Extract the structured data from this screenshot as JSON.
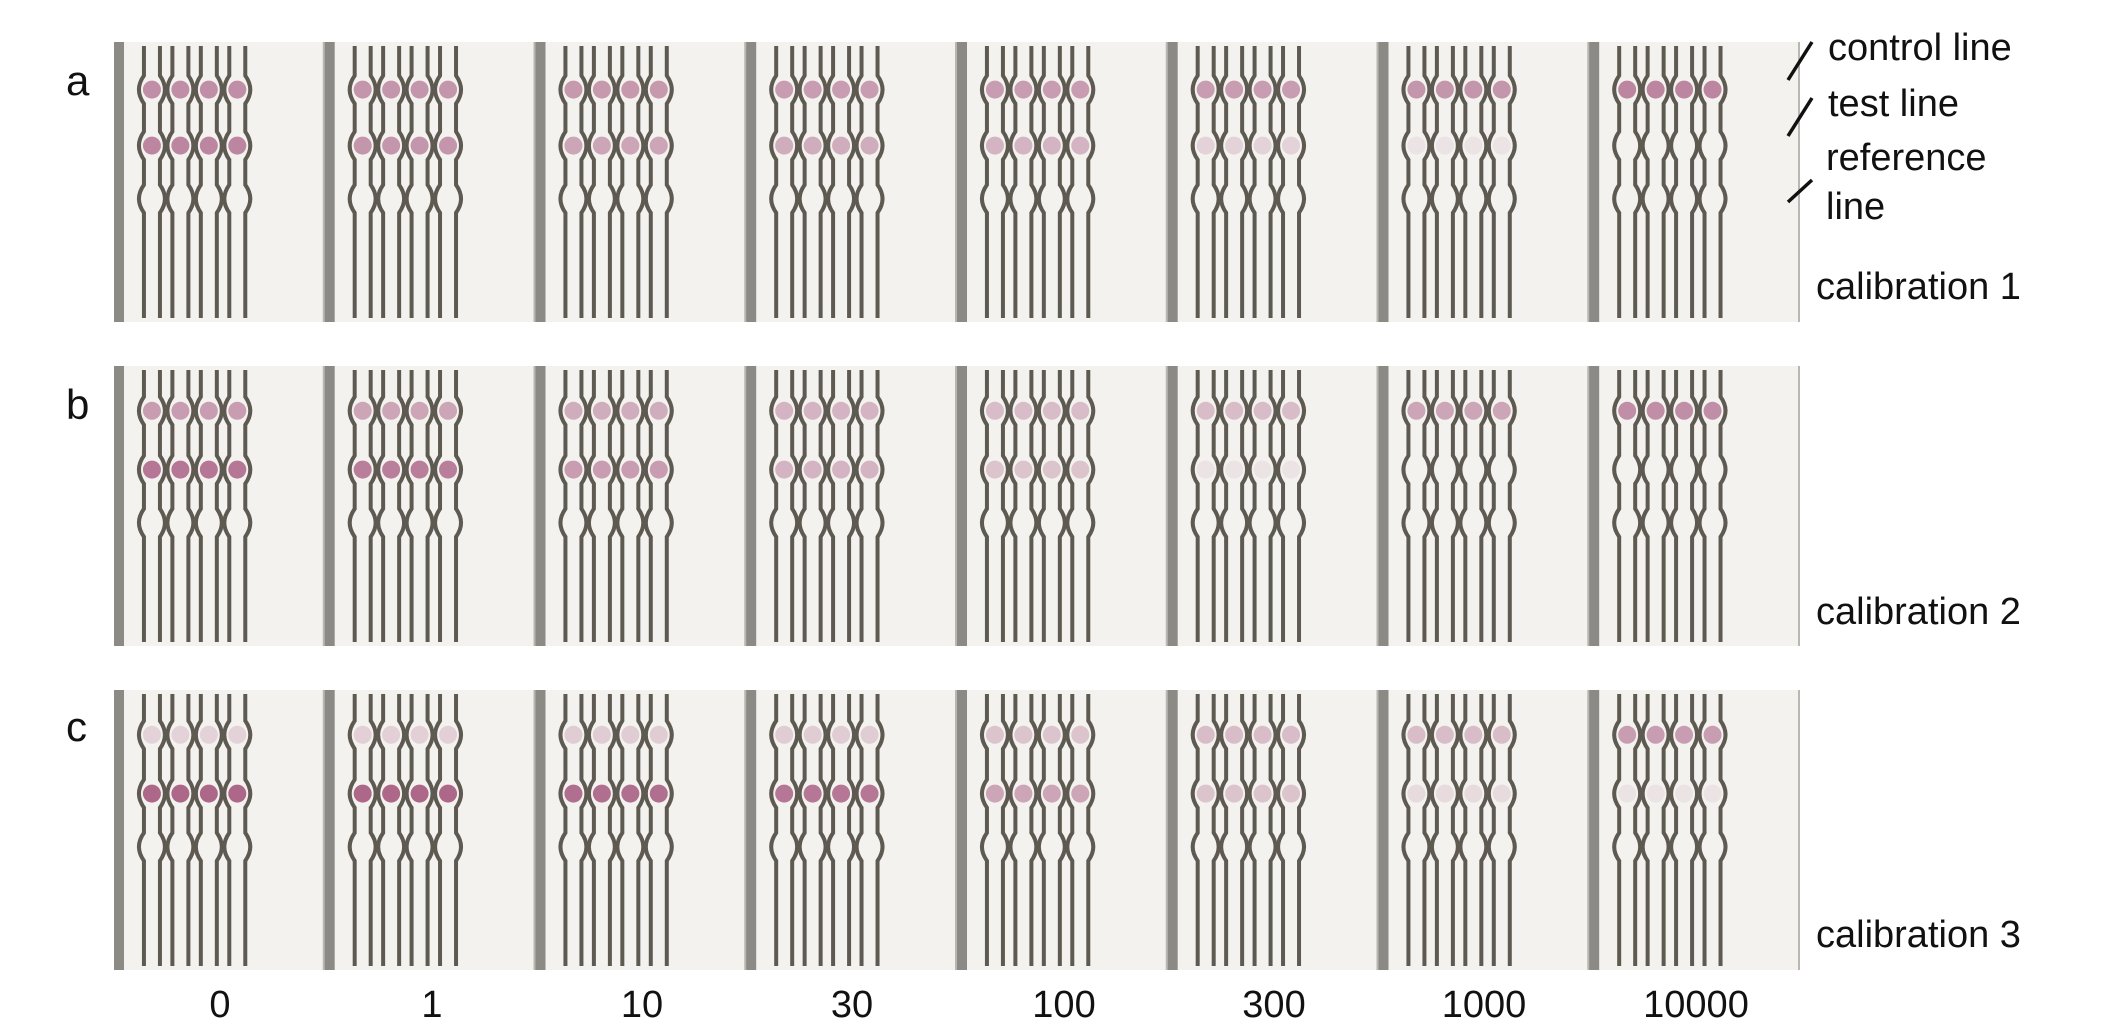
{
  "panels": [
    {
      "letter": "a",
      "row_label": "calibration 1"
    },
    {
      "letter": "b",
      "row_label": "calibration 2"
    },
    {
      "letter": "c",
      "row_label": "calibration 3"
    }
  ],
  "concentrations": [
    "0",
    "1",
    "10",
    "30",
    "100",
    "300",
    "1000",
    "10000"
  ],
  "annotations": {
    "control": "control line",
    "test": "test line",
    "reference_1": "reference",
    "reference_2": "line"
  },
  "colors": {
    "background": "#ffffff",
    "paper": "#f3f2ef",
    "cassette_dark": "#8c8a84",
    "channel_outline": "#5e5a52",
    "spot_strong": "#a5587e",
    "spot_light": "#e6c9d8"
  },
  "spot_intensity": {
    "control": [
      [
        0.65,
        0.6,
        0.58,
        0.55,
        0.55,
        0.55,
        0.6,
        0.7
      ],
      [
        0.55,
        0.5,
        0.45,
        0.4,
        0.35,
        0.35,
        0.5,
        0.65
      ],
      [
        0.2,
        0.22,
        0.25,
        0.25,
        0.3,
        0.35,
        0.35,
        0.55
      ]
    ],
    "test": [
      [
        0.7,
        0.6,
        0.5,
        0.45,
        0.4,
        0.2,
        0.1,
        0.0
      ],
      [
        0.8,
        0.75,
        0.55,
        0.4,
        0.3,
        0.1,
        0.0,
        0.0
      ],
      [
        0.9,
        0.9,
        0.85,
        0.8,
        0.5,
        0.3,
        0.15,
        0.1
      ]
    ]
  }
}
